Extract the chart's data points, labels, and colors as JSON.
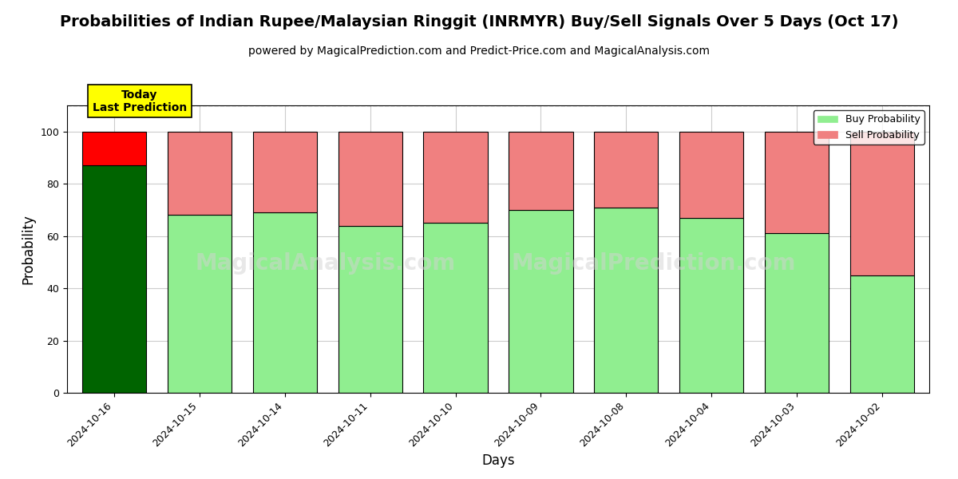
{
  "title": "Probabilities of Indian Rupee/Malaysian Ringgit (INRMYR) Buy/Sell Signals Over 5 Days (Oct 17)",
  "subtitle": "powered by MagicalPrediction.com and Predict-Price.com and MagicalAnalysis.com",
  "xlabel": "Days",
  "ylabel": "Probability",
  "categories": [
    "2024-10-16",
    "2024-10-15",
    "2024-10-14",
    "2024-10-11",
    "2024-10-10",
    "2024-10-09",
    "2024-10-08",
    "2024-10-04",
    "2024-10-03",
    "2024-10-02"
  ],
  "buy_values": [
    87,
    68,
    69,
    64,
    65,
    70,
    71,
    67,
    61,
    45
  ],
  "sell_values": [
    13,
    32,
    31,
    36,
    35,
    30,
    29,
    33,
    39,
    55
  ],
  "today_index": 0,
  "buy_color_today": "#006400",
  "sell_color_today": "#ff0000",
  "buy_color_rest": "#90EE90",
  "sell_color_rest": "#F08080",
  "bar_edge_color": "black",
  "bar_edge_width": 0.8,
  "ylim": [
    0,
    110
  ],
  "yticks": [
    0,
    20,
    40,
    60,
    80,
    100
  ],
  "dashed_line_y": 110,
  "legend_buy_label": "Buy Probability",
  "legend_sell_label": "Sell Probability",
  "today_label_line1": "Today",
  "today_label_line2": "Last Prediction",
  "today_box_color": "#FFFF00",
  "today_text_color": "black",
  "watermark_left": "MagicalAnalysis.com",
  "watermark_right": "MagicalPrediction.com",
  "grid_color": "#cccccc",
  "background_color": "white",
  "title_fontsize": 14,
  "subtitle_fontsize": 10,
  "axis_label_fontsize": 12,
  "tick_fontsize": 9
}
